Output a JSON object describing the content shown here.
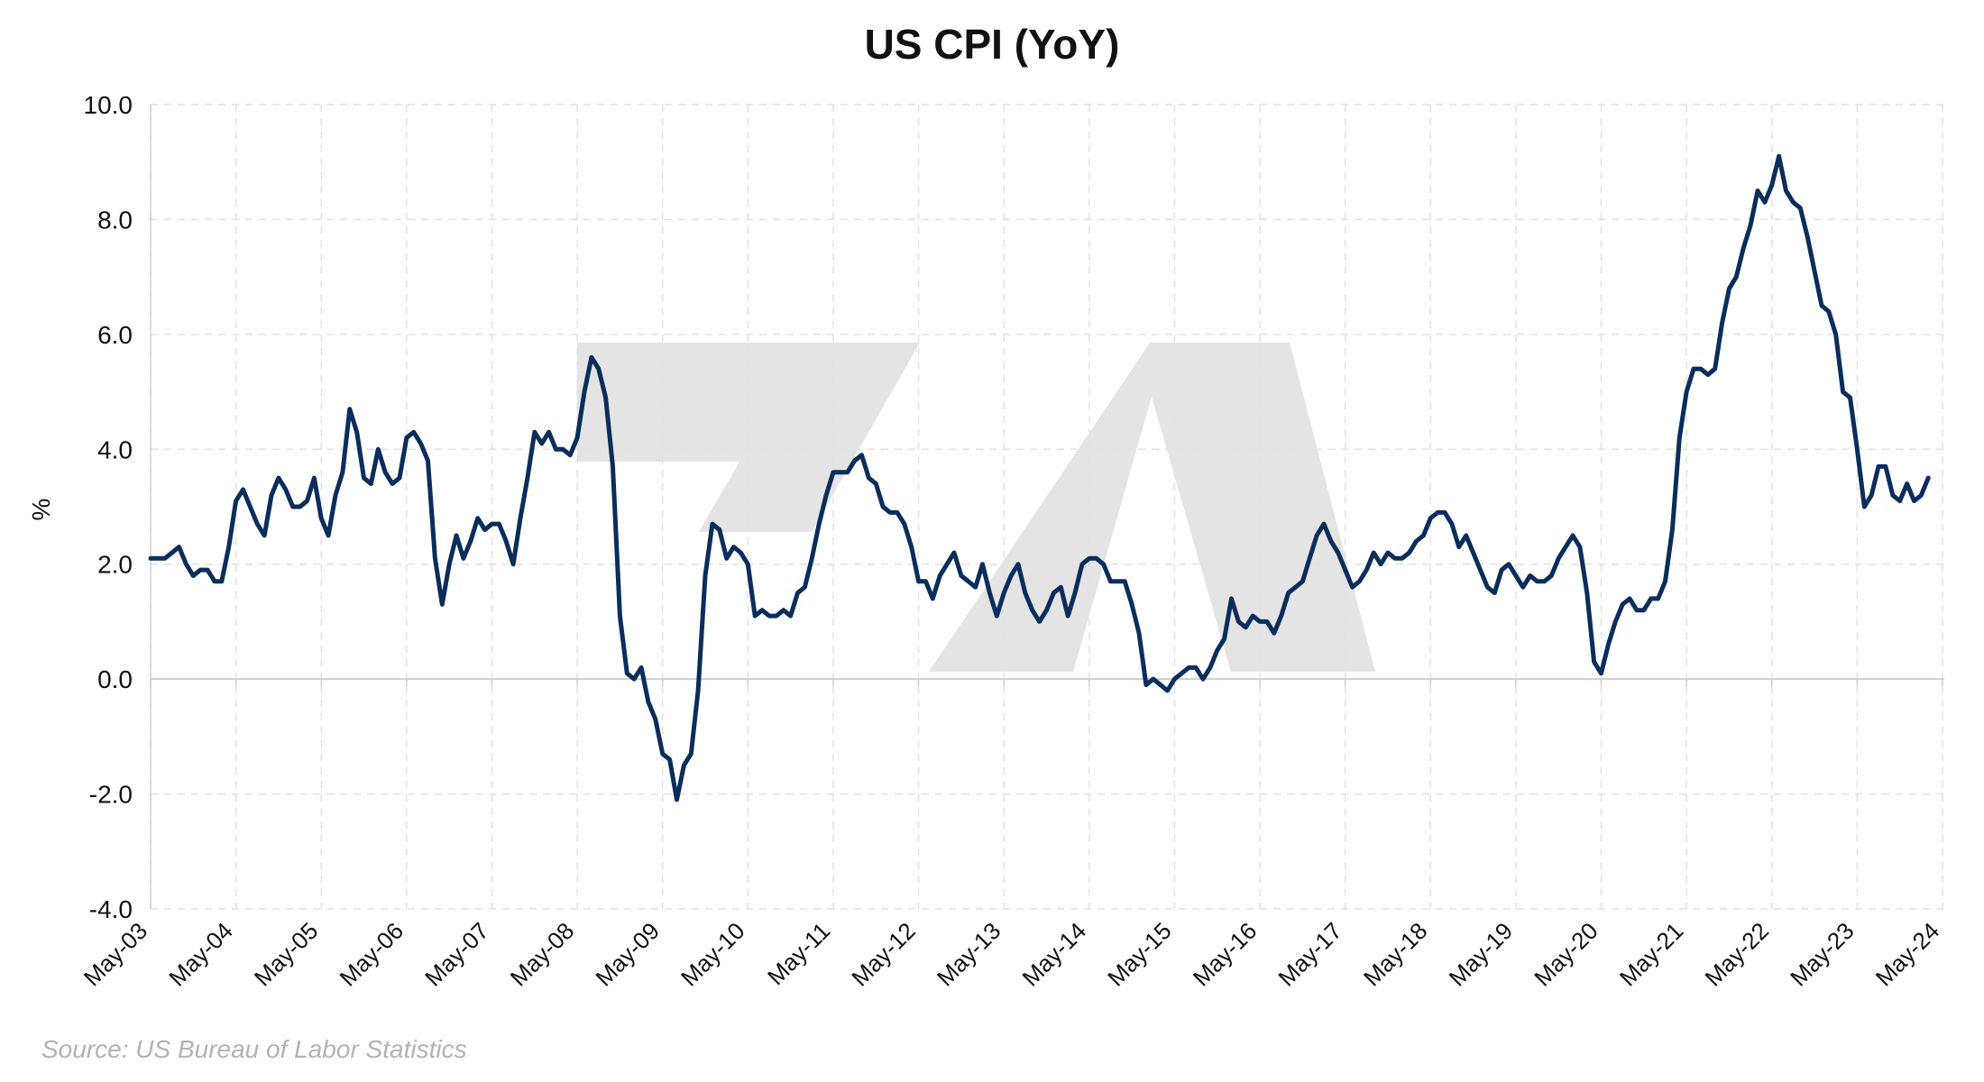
{
  "chart_data": {
    "type": "line",
    "title": "US CPI (YoY)",
    "ylabel": "%",
    "xlabel": "",
    "ylim": [
      -4,
      10
    ],
    "y_ticks": [
      "-4.0",
      "-2.0",
      "0.0",
      "2.0",
      "4.0",
      "6.0",
      "8.0",
      "10.0"
    ],
    "x_ticks": [
      "May-03",
      "May-04",
      "May-05",
      "May-06",
      "May-07",
      "May-08",
      "May-09",
      "May-10",
      "May-11",
      "May-12",
      "May-13",
      "May-14",
      "May-15",
      "May-16",
      "May-17",
      "May-18",
      "May-19",
      "May-20",
      "May-21",
      "May-22",
      "May-23",
      "May-24"
    ],
    "x_start": "May-03",
    "x_end": "May-24",
    "grid": "dashed",
    "line_color": "#0b2d5b",
    "series": [
      {
        "values": [
          2.1,
          2.1,
          2.1,
          2.2,
          2.3,
          2.0,
          1.8,
          1.9,
          1.9,
          1.7,
          1.7,
          2.3,
          3.1,
          3.3,
          3.0,
          2.7,
          2.5,
          3.2,
          3.5,
          3.3,
          3.0,
          3.0,
          3.1,
          3.5,
          2.8,
          2.5,
          3.2,
          3.6,
          4.7,
          4.3,
          3.5,
          3.4,
          4.0,
          3.6,
          3.4,
          3.5,
          4.2,
          4.3,
          4.1,
          3.8,
          2.1,
          1.3,
          2.0,
          2.5,
          2.1,
          2.4,
          2.8,
          2.6,
          2.7,
          2.7,
          2.4,
          2.0,
          2.8,
          3.5,
          4.3,
          4.1,
          4.3,
          4.0,
          4.0,
          3.9,
          4.2,
          5.0,
          5.6,
          5.4,
          4.9,
          3.7,
          1.1,
          0.1,
          0.0,
          0.2,
          -0.4,
          -0.7,
          -1.3,
          -1.4,
          -2.1,
          -1.5,
          -1.3,
          -0.2,
          1.8,
          2.7,
          2.6,
          2.1,
          2.3,
          2.2,
          2.0,
          1.1,
          1.2,
          1.1,
          1.1,
          1.2,
          1.1,
          1.5,
          1.6,
          2.1,
          2.7,
          3.2,
          3.6,
          3.6,
          3.6,
          3.8,
          3.9,
          3.5,
          3.4,
          3.0,
          2.9,
          2.9,
          2.7,
          2.3,
          1.7,
          1.7,
          1.4,
          1.8,
          2.0,
          2.2,
          1.8,
          1.7,
          1.6,
          2.0,
          1.5,
          1.1,
          1.5,
          1.8,
          2.0,
          1.5,
          1.2,
          1.0,
          1.2,
          1.5,
          1.6,
          1.1,
          1.5,
          2.0,
          2.1,
          2.1,
          2.0,
          1.7,
          1.7,
          1.7,
          1.3,
          0.8,
          -0.1,
          0.0,
          -0.1,
          -0.2,
          0.0,
          0.1,
          0.2,
          0.2,
          0.0,
          0.2,
          0.5,
          0.7,
          1.4,
          1.0,
          0.9,
          1.1,
          1.0,
          1.0,
          0.8,
          1.1,
          1.5,
          1.6,
          1.7,
          2.1,
          2.5,
          2.7,
          2.4,
          2.2,
          1.9,
          1.6,
          1.7,
          1.9,
          2.2,
          2.0,
          2.2,
          2.1,
          2.1,
          2.2,
          2.4,
          2.5,
          2.8,
          2.9,
          2.9,
          2.7,
          2.3,
          2.5,
          2.2,
          1.9,
          1.6,
          1.5,
          1.9,
          2.0,
          1.8,
          1.6,
          1.8,
          1.7,
          1.7,
          1.8,
          2.1,
          2.3,
          2.5,
          2.3,
          1.5,
          0.3,
          0.1,
          0.6,
          1.0,
          1.3,
          1.4,
          1.2,
          1.2,
          1.4,
          1.4,
          1.7,
          2.6,
          4.2,
          5.0,
          5.4,
          5.4,
          5.3,
          5.4,
          6.2,
          6.8,
          7.0,
          7.5,
          7.9,
          8.5,
          8.3,
          8.6,
          9.1,
          8.5,
          8.3,
          8.2,
          7.7,
          7.1,
          6.5,
          6.4,
          6.0,
          5.0,
          4.9,
          4.0,
          3.0,
          3.2,
          3.7,
          3.7,
          3.2,
          3.1,
          3.4,
          3.1,
          3.2,
          3.5
        ]
      }
    ]
  },
  "source": "Source: US Bureau of Labor Statistics",
  "watermark": "ZA"
}
